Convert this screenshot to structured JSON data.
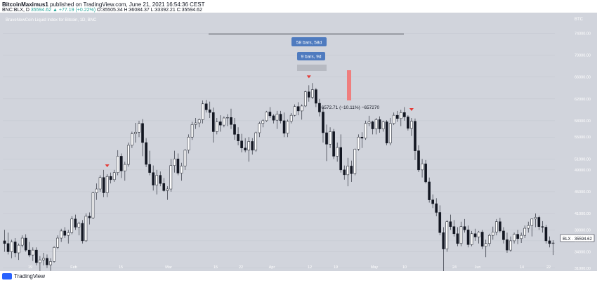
{
  "header": {
    "author": "BitcoinMaximus1",
    "published_text": "published on TradingView.com, June 21, 2021 16:54:36 CEST",
    "symbol": "BNC:BLX, D",
    "last": "35594.62",
    "change": "▲ +77.19 (+0.22%)",
    "ohlc": "O:35505.34 H:36084.37 L:33392.21 C:35594.62"
  },
  "chart_title": "BraveNewCoin Liquid Index for Bitcoin, 1D, BNC",
  "currency": "BTC",
  "colors": {
    "background": "#d1d4dc",
    "candle": "#131722",
    "marker": "#e53935",
    "measure_bar": "#ef7e7e",
    "label_bg": "#4f7bbf"
  },
  "annotations": {
    "bars_long": "58 bars, 58d",
    "bars_short": "9 bars, 9d",
    "drop": "−6572.71 (−10.11%) −657270"
  },
  "price_tag": "BLX · 35594.62",
  "footer": {
    "brand": "TradingView"
  },
  "chart_data": {
    "type": "candlestick",
    "x_labels": [
      "19",
      "Feb",
      "15",
      "Mar",
      "15",
      "22",
      "Apr",
      "12",
      "19",
      "May",
      "10",
      "24",
      "Jun",
      "14",
      "22"
    ],
    "y_ticks": [
      31000,
      34000,
      36000,
      38000,
      41000,
      45000,
      49000,
      51000,
      55000,
      58000,
      62000,
      66000,
      70000,
      74000
    ],
    "ylim": [
      32000,
      76000
    ],
    "candles": [
      [
        36000,
        38000,
        34000,
        35500
      ],
      [
        35500,
        37500,
        33500,
        34000
      ],
      [
        34000,
        36200,
        32800,
        35800
      ],
      [
        35800,
        36500,
        33000,
        33800
      ],
      [
        33800,
        35500,
        32500,
        35200
      ],
      [
        35200,
        37000,
        34800,
        36500
      ],
      [
        36500,
        37200,
        34000,
        34300
      ],
      [
        34300,
        35800,
        33000,
        33400
      ],
      [
        33400,
        34800,
        32300,
        34300
      ],
      [
        34300,
        34800,
        31500,
        32000
      ],
      [
        32000,
        33200,
        30000,
        32500
      ],
      [
        32500,
        33800,
        31500,
        32800
      ],
      [
        32800,
        33500,
        31000,
        31600
      ],
      [
        31600,
        32800,
        30500,
        32200
      ],
      [
        32200,
        35000,
        32000,
        34800
      ],
      [
        34800,
        37000,
        34500,
        36500
      ],
      [
        36500,
        38200,
        35800,
        37800
      ],
      [
        37800,
        38500,
        36500,
        37000
      ],
      [
        37000,
        38000,
        35500,
        37500
      ],
      [
        37500,
        40500,
        37200,
        40000
      ],
      [
        40000,
        40800,
        38000,
        38500
      ],
      [
        38500,
        39500,
        37000,
        39200
      ],
      [
        39200,
        39800,
        35500,
        36000
      ],
      [
        36000,
        41000,
        35800,
        40500
      ],
      [
        40500,
        41200,
        39000,
        40200
      ],
      [
        40200,
        45000,
        40000,
        44800
      ],
      [
        44800,
        46500,
        43500,
        45500
      ],
      [
        45500,
        48000,
        45000,
        47600
      ],
      [
        47600,
        49000,
        44000,
        44800
      ],
      [
        44800,
        48200,
        44000,
        47800
      ],
      [
        47800,
        48500,
        46500,
        47200
      ],
      [
        47200,
        49000,
        46800,
        48500
      ],
      [
        48500,
        52600,
        48000,
        51500
      ],
      [
        51500,
        52000,
        47500,
        48800
      ],
      [
        48800,
        50500,
        47000,
        50000
      ],
      [
        50000,
        54000,
        49600,
        53500
      ],
      [
        53500,
        56000,
        53000,
        55600
      ],
      [
        55600,
        57600,
        54000,
        55900
      ],
      [
        55900,
        58000,
        55000,
        57500
      ],
      [
        57500,
        58300,
        51500,
        54000
      ],
      [
        54000,
        54800,
        49500,
        50000
      ],
      [
        50000,
        52500,
        48000,
        48500
      ],
      [
        48500,
        49800,
        45200,
        46200
      ],
      [
        46200,
        49000,
        44500,
        48000
      ],
      [
        48000,
        48700,
        46000,
        46500
      ],
      [
        46500,
        47500,
        45000,
        45200
      ],
      [
        45200,
        46000,
        43500,
        45500
      ],
      [
        45500,
        51000,
        45000,
        49800
      ],
      [
        49800,
        52500,
        48500,
        51000
      ],
      [
        51000,
        52000,
        48000,
        48400
      ],
      [
        48400,
        50300,
        47000,
        49700
      ],
      [
        49700,
        52800,
        49000,
        52600
      ],
      [
        52600,
        55500,
        52000,
        55000
      ],
      [
        55000,
        57800,
        54500,
        57300
      ],
      [
        57300,
        58500,
        56500,
        57600
      ],
      [
        57600,
        58400,
        56800,
        58200
      ],
      [
        58200,
        61700,
        57500,
        61100
      ],
      [
        61100,
        61800,
        59500,
        60000
      ],
      [
        60000,
        61500,
        58500,
        59500
      ],
      [
        59500,
        60400,
        54000,
        56000
      ],
      [
        56000,
        58500,
        55500,
        57800
      ],
      [
        57800,
        59000,
        56000,
        57200
      ],
      [
        57200,
        58800,
        56800,
        58500
      ],
      [
        58500,
        59200,
        57000,
        58600
      ],
      [
        58600,
        60200,
        56500,
        57300
      ],
      [
        57300,
        58500,
        54500,
        55500
      ],
      [
        55500,
        56800,
        53500,
        54300
      ],
      [
        54300,
        55600,
        52200,
        53000
      ],
      [
        53000,
        54800,
        52200,
        52600
      ],
      [
        52600,
        55000,
        50500,
        54200
      ],
      [
        54200,
        54800,
        51800,
        52600
      ],
      [
        52600,
        56000,
        52300,
        55800
      ],
      [
        55800,
        57800,
        55000,
        57500
      ],
      [
        57500,
        58300,
        56800,
        58000
      ],
      [
        58000,
        59800,
        57800,
        59600
      ],
      [
        59600,
        60500,
        58500,
        58900
      ],
      [
        58900,
        59200,
        57500,
        58100
      ],
      [
        58100,
        59800,
        56500,
        59200
      ],
      [
        59200,
        59800,
        57500,
        58000
      ],
      [
        58000,
        59500,
        55000,
        55700
      ],
      [
        55700,
        58200,
        55000,
        57900
      ],
      [
        57900,
        59400,
        57500,
        59000
      ],
      [
        59000,
        61000,
        58800,
        60600
      ],
      [
        60600,
        61400,
        59000,
        59800
      ],
      [
        59800,
        61000,
        58200,
        60700
      ],
      [
        60700,
        63500,
        60500,
        63300
      ],
      [
        63300,
        64500,
        61500,
        62300
      ],
      [
        62300,
        64900,
        62000,
        63700
      ],
      [
        63700,
        64000,
        60500,
        61200
      ],
      [
        61200,
        62000,
        58800,
        59600
      ],
      [
        59600,
        60400,
        54000,
        55800
      ],
      [
        55800,
        57300,
        50600,
        53700
      ],
      [
        53700,
        56800,
        53000,
        56000
      ],
      [
        56000,
        56500,
        51000,
        51500
      ],
      [
        51500,
        54000,
        50500,
        53100
      ],
      [
        53100,
        55500,
        48500,
        49000
      ],
      [
        49000,
        49800,
        47200,
        48100
      ],
      [
        48100,
        51200,
        46000,
        49700
      ],
      [
        49700,
        50700,
        46800,
        48300
      ],
      [
        48300,
        52900,
        48000,
        52800
      ],
      [
        52800,
        55500,
        52500,
        55000
      ],
      [
        55000,
        55900,
        53000,
        54800
      ],
      [
        54800,
        58000,
        54500,
        57500
      ],
      [
        57500,
        58900,
        57000,
        57800
      ],
      [
        57800,
        58000,
        55500,
        56500
      ],
      [
        56500,
        58500,
        55500,
        58200
      ],
      [
        58200,
        58800,
        55800,
        56500
      ],
      [
        56500,
        58000,
        56000,
        57800
      ],
      [
        57800,
        58100,
        53500,
        53900
      ],
      [
        53900,
        58500,
        53500,
        57500
      ],
      [
        57500,
        59500,
        57200,
        59000
      ],
      [
        59000,
        59800,
        57800,
        58400
      ],
      [
        58400,
        60000,
        57000,
        59500
      ],
      [
        59500,
        60500,
        58000,
        58700
      ],
      [
        58700,
        59000,
        56200,
        56600
      ],
      [
        56600,
        58500,
        55200,
        57900
      ],
      [
        57900,
        58400,
        50800,
        52500
      ],
      [
        52500,
        53500,
        48600,
        49000
      ],
      [
        49000,
        51000,
        47600,
        50100
      ],
      [
        50100,
        50800,
        46500,
        46800
      ],
      [
        46800,
        47600,
        43000,
        43500
      ],
      [
        43500,
        44500,
        42000,
        42800
      ],
      [
        42800,
        43800,
        40500,
        41200
      ],
      [
        41200,
        42500,
        37000,
        37500
      ],
      [
        37500,
        38500,
        30000,
        34500
      ],
      [
        34500,
        39800,
        34000,
        39500
      ],
      [
        39500,
        40800,
        38000,
        38600
      ],
      [
        38600,
        39800,
        36800,
        37300
      ],
      [
        37300,
        38500,
        35000,
        35500
      ],
      [
        35500,
        39500,
        35000,
        38600
      ],
      [
        38600,
        40000,
        37500,
        38000
      ],
      [
        38000,
        38800,
        34800,
        35300
      ],
      [
        35300,
        37800,
        35000,
        37300
      ],
      [
        37300,
        38200,
        36000,
        36700
      ],
      [
        36700,
        37800,
        35500,
        37600
      ],
      [
        37600,
        38000,
        34500,
        35000
      ],
      [
        35000,
        36200,
        33000,
        35500
      ],
      [
        35500,
        37300,
        35000,
        37000
      ],
      [
        37000,
        38600,
        36200,
        37600
      ],
      [
        37600,
        40000,
        37000,
        39500
      ],
      [
        39500,
        40200,
        37500,
        37800
      ],
      [
        37800,
        38500,
        35500,
        36200
      ],
      [
        36200,
        37500,
        33800,
        34300
      ],
      [
        34300,
        36800,
        34000,
        36000
      ],
      [
        36000,
        37500,
        35500,
        37200
      ],
      [
        37200,
        38000,
        35400,
        36400
      ],
      [
        36400,
        37500,
        35600,
        37000
      ],
      [
        37000,
        38800,
        36500,
        38300
      ],
      [
        38300,
        39500,
        37500,
        38800
      ],
      [
        38800,
        40000,
        36800,
        40000
      ],
      [
        40000,
        41000,
        38500,
        40300
      ],
      [
        40300,
        40600,
        38000,
        38600
      ],
      [
        38600,
        39600,
        37500,
        38500
      ],
      [
        38500,
        38900,
        35500,
        36000
      ],
      [
        36000,
        36800,
        34800,
        35500
      ],
      [
        35500,
        36100,
        33400,
        35600
      ]
    ],
    "markers_at_index": [
      29,
      86,
      115
    ]
  }
}
